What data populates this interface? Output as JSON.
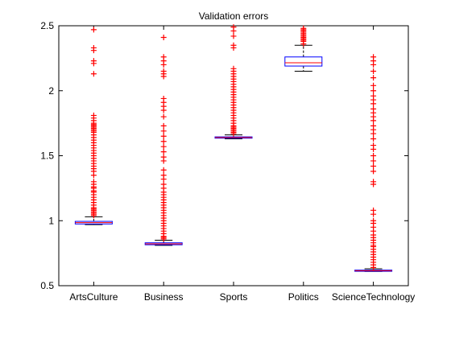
{
  "chart_data": {
    "type": "box",
    "title": "Validation errors",
    "xlabel": "",
    "ylabel": "",
    "ylim": [
      0.5,
      2.5
    ],
    "yticks": [
      0.5,
      1,
      1.5,
      2,
      2.5
    ],
    "ytick_labels": [
      "0.5",
      "1",
      "1.5",
      "2",
      "2.5"
    ],
    "grid": false,
    "colors": {
      "box": "#0000ff",
      "median": "#ff0000",
      "whisker": "#000000",
      "outlier": "#ff0000",
      "axes": "#000000"
    },
    "categories": [
      "ArtsCulture",
      "Business",
      "Sports",
      "Politics",
      "ScienceTechnology"
    ],
    "boxes": [
      {
        "name": "ArtsCulture",
        "whisker_low": 0.97,
        "q1": 0.975,
        "median": 0.985,
        "q3": 0.995,
        "whisker_high": 1.03,
        "outliers": [
          2.47,
          2.33,
          2.31,
          2.23,
          2.21,
          2.13,
          1.81,
          1.79,
          1.77,
          1.75,
          1.74,
          1.73,
          1.72,
          1.71,
          1.7,
          1.69,
          1.68,
          1.66,
          1.64,
          1.62,
          1.6,
          1.58,
          1.56,
          1.54,
          1.52,
          1.5,
          1.48,
          1.46,
          1.44,
          1.42,
          1.4,
          1.38,
          1.35,
          1.3,
          1.28,
          1.26,
          1.25,
          1.23,
          1.22,
          1.2,
          1.18,
          1.16,
          1.14,
          1.12,
          1.1,
          1.09,
          1.08,
          1.07,
          1.06,
          1.05,
          1.04
        ]
      },
      {
        "name": "Business",
        "whisker_low": 0.81,
        "q1": 0.815,
        "median": 0.822,
        "q3": 0.83,
        "whisker_high": 0.85,
        "outliers": [
          2.41,
          2.26,
          2.23,
          2.2,
          2.15,
          2.13,
          2.11,
          1.94,
          1.91,
          1.88,
          1.85,
          1.8,
          1.73,
          1.69,
          1.65,
          1.61,
          1.57,
          1.53,
          1.49,
          1.46,
          1.39,
          1.35,
          1.32,
          1.28,
          1.25,
          1.22,
          1.2,
          1.18,
          1.16,
          1.14,
          1.12,
          1.1,
          1.08,
          1.06,
          1.04,
          1.02,
          1.0,
          0.98,
          0.96,
          0.94,
          0.92,
          0.9,
          0.88,
          0.87,
          0.86
        ]
      },
      {
        "name": "Sports",
        "whisker_low": 1.63,
        "q1": 1.635,
        "median": 1.64,
        "q3": 1.645,
        "whisker_high": 1.66,
        "outliers": [
          2.49,
          2.46,
          2.42,
          2.35,
          2.33,
          2.17,
          2.15,
          2.13,
          2.11,
          2.09,
          2.07,
          2.05,
          2.03,
          2.01,
          1.99,
          1.97,
          1.95,
          1.93,
          1.91,
          1.89,
          1.87,
          1.85,
          1.83,
          1.81,
          1.79,
          1.77,
          1.75,
          1.73,
          1.72,
          1.71,
          1.7,
          1.69,
          1.68,
          1.67
        ]
      },
      {
        "name": "Politics",
        "whisker_low": 2.15,
        "q1": 2.19,
        "median": 2.215,
        "q3": 2.26,
        "whisker_high": 2.35,
        "outliers": [
          2.36,
          2.38,
          2.39,
          2.4,
          2.41,
          2.42,
          2.43,
          2.44,
          2.45,
          2.46,
          2.47,
          2.48
        ]
      },
      {
        "name": "ScienceTechnology",
        "whisker_low": 0.61,
        "q1": 0.612,
        "median": 0.615,
        "q3": 0.62,
        "whisker_high": 0.63,
        "outliers": [
          2.26,
          2.23,
          2.2,
          2.15,
          2.1,
          2.04,
          2.0,
          1.96,
          1.93,
          1.9,
          1.86,
          1.83,
          1.8,
          1.77,
          1.73,
          1.7,
          1.67,
          1.63,
          1.58,
          1.55,
          1.5,
          1.46,
          1.42,
          1.38,
          1.3,
          1.28,
          1.08,
          1.05,
          1.0,
          0.98,
          0.95,
          0.92,
          0.89,
          0.87,
          0.85,
          0.83,
          0.81,
          0.8,
          0.78,
          0.76,
          0.74,
          0.72,
          0.7,
          0.68,
          0.66,
          0.64
        ]
      }
    ]
  }
}
